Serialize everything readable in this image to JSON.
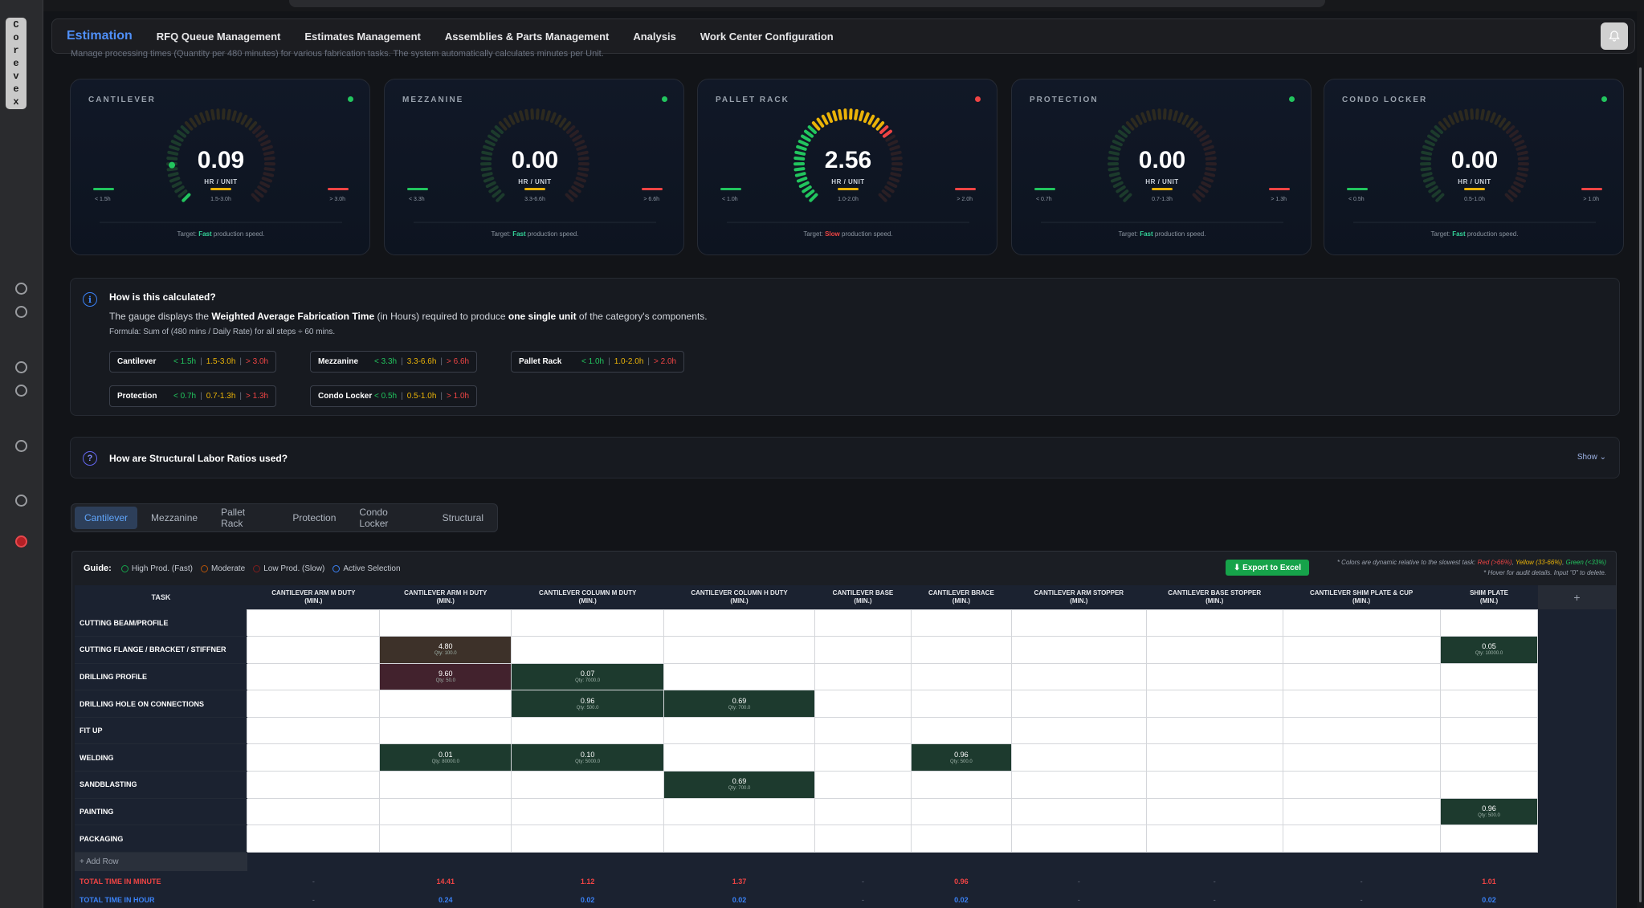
{
  "brand_letters": [
    "C",
    "o",
    "r",
    "e",
    "v",
    "e",
    "x"
  ],
  "nav": {
    "logo": "Estimation",
    "items": [
      "RFQ Queue Management",
      "Estimates Management",
      "Assemblies & Parts Management",
      "Analysis",
      "Work Center Configuration"
    ],
    "bell_icon": "bell-icon"
  },
  "subtitle": "Manage processing times (Quantity per 480 minutes) for various fabrication tasks. The system automatically calculates minutes per Unit.",
  "gauges": [
    {
      "title": "CANTILEVER",
      "value": "0.09",
      "unit": "HR / UNIT",
      "min": "< 1.5h",
      "range": "1.5-3.0h",
      "max": "> 3.0h",
      "status": "Fast",
      "status_color": "#22c55e",
      "fill_fraction": 0.03
    },
    {
      "title": "MEZZANINE",
      "value": "0.00",
      "unit": "HR / UNIT",
      "min": "< 3.3h",
      "range": "3.3-6.6h",
      "max": "> 6.6h",
      "status": "Fast",
      "status_color": "#22c55e",
      "fill_fraction": 0.0
    },
    {
      "title": "PALLET RACK",
      "value": "2.56",
      "unit": "HR / UNIT",
      "min": "< 1.0h",
      "range": "1.0-2.0h",
      "max": "> 2.0h",
      "status": "Slow",
      "status_color": "#ef4444",
      "fill_fraction": 0.7
    },
    {
      "title": "PROTECTION",
      "value": "0.00",
      "unit": "HR / UNIT",
      "min": "< 0.7h",
      "range": "0.7-1.3h",
      "max": "> 1.3h",
      "status": "Fast",
      "status_color": "#22c55e",
      "fill_fraction": 0.0
    },
    {
      "title": "CONDO LOCKER",
      "value": "0.00",
      "unit": "HR / UNIT",
      "min": "< 0.5h",
      "range": "0.5-1.0h",
      "max": "> 1.0h",
      "status": "Fast",
      "status_color": "#22c55e",
      "fill_fraction": 0.0
    }
  ],
  "gauge_footer": {
    "prefix": "Target: ",
    "suffix": " production speed."
  },
  "info": {
    "title": "How is this calculated?",
    "desc_1": "The gauge displays the ",
    "desc_bold_1": "Weighted Average Fabrication Time",
    "desc_2": " (in Hours) required to produce ",
    "desc_bold_2": "one single unit",
    "desc_3": " of the category's components.",
    "formula": "Formula: Sum of (480 mins / Daily Rate) for all steps ÷ 60 mins.",
    "chips": [
      {
        "name": "Cantilever",
        "g": "< 1.5h",
        "y": "1.5-3.0h",
        "r": "> 3.0h"
      },
      {
        "name": "Mezzanine",
        "g": "< 3.3h",
        "y": "3.3-6.6h",
        "r": "> 6.6h"
      },
      {
        "name": "Pallet Rack",
        "g": "< 1.0h",
        "y": "1.0-2.0h",
        "r": "> 2.0h"
      },
      {
        "name": "Protection",
        "g": "< 0.7h",
        "y": "0.7-1.3h",
        "r": "> 1.3h"
      },
      {
        "name": "Condo Locker",
        "g": "< 0.5h",
        "y": "0.5-1.0h",
        "r": "> 1.0h"
      }
    ]
  },
  "ratios": {
    "title": "How are Structural Labor Ratios used?",
    "show": "Show"
  },
  "tabs": [
    "Cantilever",
    "Mezzanine",
    "Pallet Rack",
    "Protection",
    "Condo Locker",
    "Structural"
  ],
  "active_tab": "Cantilever",
  "guide": {
    "label": "Guide:",
    "items": [
      {
        "text": "High Prod. (Fast)",
        "color": "#16a34a"
      },
      {
        "text": "Moderate",
        "color": "#b45309"
      },
      {
        "text": "Low Prod. (Slow)",
        "color": "#7f1d1d"
      },
      {
        "text": "Active Selection",
        "color": "#3b82f6"
      }
    ]
  },
  "export_label": "⬇ Export to Excel",
  "note1": {
    "prefix": "* Colors are dynamic relative to the slowest task: ",
    "red": "Red (>66%)",
    "yellow": "Yellow (33-66%)",
    "green": "Green (<33%)"
  },
  "note2": "* Hover for audit details. Input \"0\" to delete.",
  "table": {
    "task_header": "TASK",
    "plus": "+",
    "columns": [
      {
        "l1": "CANTILEVER ARM M DUTY",
        "l2": "(MIN.)"
      },
      {
        "l1": "CANTILEVER ARM H DUTY",
        "l2": "(MIN.)"
      },
      {
        "l1": "CANTILEVER COLUMN M DUTY",
        "l2": "(MIN.)"
      },
      {
        "l1": "CANTILEVER COLUMN H DUTY",
        "l2": "(MIN.)"
      },
      {
        "l1": "CANTILEVER BASE",
        "l2": "(MIN.)"
      },
      {
        "l1": "CANTILEVER BRACE",
        "l2": "(MIN.)"
      },
      {
        "l1": "CANTILEVER ARM STOPPER",
        "l2": "(MIN.)"
      },
      {
        "l1": "CANTILEVER BASE STOPPER",
        "l2": "(MIN.)"
      },
      {
        "l1": "CANTILEVER SHIM PLATE & CUP",
        "l2": "(MIN.)"
      },
      {
        "l1": "SHIM PLATE",
        "l2": "(MIN.)"
      }
    ],
    "rows": [
      {
        "task": "CUTTING BEAM/PROFILE",
        "cells": [
          null,
          null,
          null,
          null,
          null,
          null,
          null,
          null,
          null,
          null
        ]
      },
      {
        "task": "CUTTING FLANGE / BRACKET / STIFFNER",
        "cells": [
          null,
          {
            "v": "4.80",
            "q": "Qty: 100.0",
            "c": "brown"
          },
          null,
          null,
          null,
          null,
          null,
          null,
          null,
          {
            "v": "0.05",
            "q": "Qty: 10000.0",
            "c": "dark"
          }
        ]
      },
      {
        "task": "DRILLING PROFILE",
        "cells": [
          null,
          {
            "v": "9.60",
            "q": "Qty: 50.0",
            "c": "plum"
          },
          {
            "v": "0.07",
            "q": "Qty: 7000.0",
            "c": "dark"
          },
          null,
          null,
          null,
          null,
          null,
          null,
          null
        ]
      },
      {
        "task": "DRILLING HOLE ON CONNECTIONS",
        "cells": [
          null,
          null,
          {
            "v": "0.96",
            "q": "Qty: 500.0",
            "c": "dark"
          },
          {
            "v": "0.69",
            "q": "Qty: 700.0",
            "c": "dark"
          },
          null,
          null,
          null,
          null,
          null,
          null
        ]
      },
      {
        "task": "FIT UP",
        "cells": [
          null,
          null,
          null,
          null,
          null,
          null,
          null,
          null,
          null,
          null
        ]
      },
      {
        "task": "WELDING",
        "cells": [
          null,
          {
            "v": "0.01",
            "q": "Qty: 80000.0",
            "c": "dark"
          },
          {
            "v": "0.10",
            "q": "Qty: 5000.0",
            "c": "dark"
          },
          null,
          null,
          {
            "v": "0.96",
            "q": "Qty: 500.0",
            "c": "dark"
          },
          null,
          null,
          null,
          null
        ]
      },
      {
        "task": "SANDBLASTING",
        "cells": [
          null,
          null,
          null,
          {
            "v": "0.69",
            "q": "Qty: 700.0",
            "c": "dark"
          },
          null,
          null,
          null,
          null,
          null,
          null
        ]
      },
      {
        "task": "PAINTING",
        "cells": [
          null,
          null,
          null,
          null,
          null,
          null,
          null,
          null,
          null,
          {
            "v": "0.96",
            "q": "Qty: 500.0",
            "c": "dark"
          }
        ]
      },
      {
        "task": "PACKAGING",
        "cells": [
          null,
          null,
          null,
          null,
          null,
          null,
          null,
          null,
          null,
          null
        ]
      }
    ],
    "add_row": "+ Add Row",
    "total_min_label": "TOTAL TIME IN MINUTE",
    "total_min": [
      "-",
      "14.41",
      "1.12",
      "1.37",
      "-",
      "0.96",
      "-",
      "-",
      "-",
      "1.01"
    ],
    "total_hour_label": "TOTAL TIME IN HOUR",
    "total_hour": [
      "-",
      "0.24",
      "0.02",
      "0.02",
      "-",
      "0.02",
      "-",
      "-",
      "-",
      "0.02"
    ]
  }
}
